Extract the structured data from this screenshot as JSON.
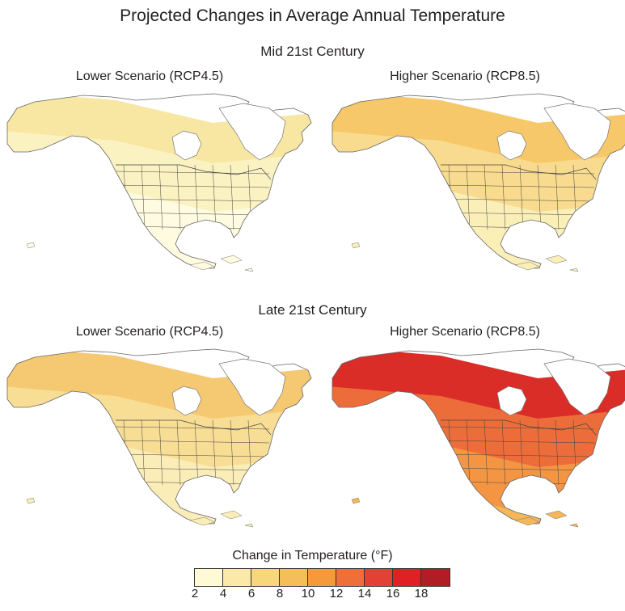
{
  "title": "Projected Changes in Average Annual Temperature",
  "periods": [
    {
      "label": "Mid 21st Century",
      "scenarios": [
        {
          "label": "Lower Scenario (RCP4.5)",
          "bands": [
            "#f7e7a2",
            "#fbf2c2",
            "#fffbe0"
          ]
        },
        {
          "label": "Higher Scenario (RCP8.5)",
          "bands": [
            "#f6c869",
            "#f8db8e",
            "#fbefb8"
          ]
        }
      ]
    },
    {
      "label": "Late 21st Century",
      "scenarios": [
        {
          "label": "Lower Scenario (RCP4.5)",
          "bands": [
            "#f5c872",
            "#f8dd95",
            "#fbedb7"
          ]
        },
        {
          "label": "Higher Scenario (RCP8.5)",
          "bands": [
            "#db2d28",
            "#ec6d3a",
            "#f49543",
            "#f6b65a"
          ]
        }
      ]
    }
  ],
  "legend": {
    "title": "Change in Temperature (°F)",
    "ticks": [
      "2",
      "4",
      "6",
      "8",
      "10",
      "12",
      "14",
      "16",
      "18"
    ],
    "colors": [
      "#fffad6",
      "#fbe9a7",
      "#f7d77c",
      "#f5be5a",
      "#f49a3c",
      "#ee6f38",
      "#e34134",
      "#e12026",
      "#b11d24"
    ]
  }
}
